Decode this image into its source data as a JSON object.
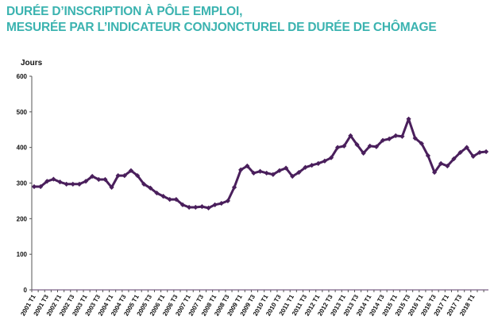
{
  "header": {
    "title_line1": "DURÉE D’INSCRIPTION À PÔLE EMPLOI,",
    "title_line2": "MESURÉE PAR L’INDICATEUR CONJONCTUREL DE DURÉE DE CHÔMAGE"
  },
  "colors": {
    "title": "#3bb3b0",
    "line": "#4a1f5c",
    "axis": "#555555"
  },
  "chart_data": {
    "type": "line",
    "title": "DURÉE D’INSCRIPTION À PÔLE EMPLOI, MESURÉE PAR L’INDICATEUR CONJONCTUREL DE DURÉE DE CHÔMAGE",
    "xlabel": "",
    "ylabel": "Jours",
    "ylim": [
      0,
      600
    ],
    "yticks": [
      0,
      100,
      200,
      300,
      400,
      500,
      600
    ],
    "grid": false,
    "legend": null,
    "xtick_labels": [
      "2001 T1",
      "2001 T3",
      "2002 T1",
      "2002 T3",
      "2003 T1",
      "2003 T3",
      "2004 T1",
      "2004 T3",
      "2005 T1",
      "2005 T3",
      "2006 T1",
      "2006 T3",
      "2007 T1",
      "2007 T3",
      "2008 T1",
      "2008 T3",
      "2009 T1",
      "2009 T3",
      "2010 T1",
      "2010 T3",
      "2011 T1",
      "2011 T3",
      "2012 T1",
      "2012 T3",
      "2013 T1",
      "2013 T3",
      "2014 T1",
      "2014 T3",
      "2015 T1",
      "2015 T3",
      "2016 T1",
      "2016 T3",
      "2017 T1",
      "2017 T3",
      "2018 T1"
    ],
    "series": [
      {
        "name": "Indicateur conjoncturel de durée de chômage (jours)",
        "values": [
          290,
          290,
          305,
          311,
          303,
          297,
          297,
          297,
          305,
          319,
          310,
          310,
          288,
          321,
          321,
          335,
          321,
          297,
          286,
          272,
          263,
          254,
          254,
          239,
          232,
          232,
          234,
          230,
          239,
          243,
          250,
          288,
          337,
          348,
          328,
          333,
          328,
          324,
          335,
          342,
          319,
          330,
          344,
          350,
          355,
          362,
          371,
          400,
          404,
          433,
          408,
          384,
          404,
          402,
          420,
          424,
          433,
          431,
          480,
          426,
          411,
          377,
          330,
          355,
          348,
          368,
          386,
          400,
          375,
          386,
          388
        ]
      }
    ]
  }
}
